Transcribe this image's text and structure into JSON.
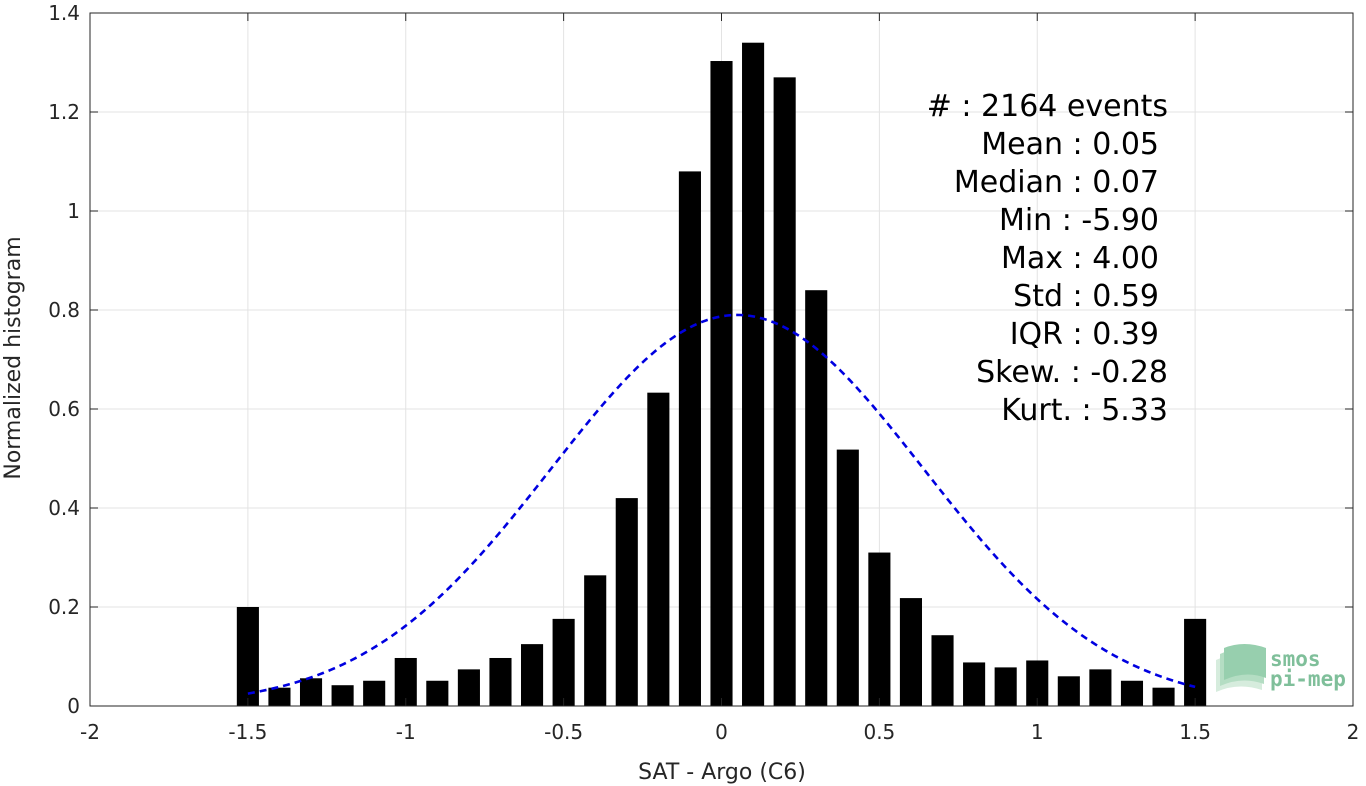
{
  "chart_data": {
    "type": "bar",
    "title": "",
    "xlabel": "SAT - Argo (C6)",
    "ylabel": "Normalized histogram",
    "xlim": [
      -2,
      2
    ],
    "ylim": [
      0,
      1.4
    ],
    "grid": true,
    "xticks": [
      -2,
      -1.5,
      -1,
      -0.5,
      0,
      0.5,
      1,
      1.5,
      2
    ],
    "xtick_labels": [
      "-2",
      "-1.5",
      "-1",
      "-0.5",
      "0",
      "0.5",
      "1",
      "1.5",
      "2"
    ],
    "yticks": [
      0,
      0.2,
      0.4,
      0.6,
      0.8,
      1,
      1.2,
      1.4
    ],
    "ytick_labels": [
      "0",
      "0.2",
      "0.4",
      "0.6",
      "0.8",
      "1",
      "1.2",
      "1.4"
    ],
    "bar_width": 0.07,
    "bars": {
      "x": [
        -1.5,
        -1.4,
        -1.3,
        -1.2,
        -1.1,
        -1.0,
        -0.9,
        -0.8,
        -0.7,
        -0.6,
        -0.5,
        -0.4,
        -0.3,
        -0.2,
        -0.1,
        0.0,
        0.1,
        0.2,
        0.3,
        0.4,
        0.5,
        0.6,
        0.7,
        0.8,
        0.9,
        1.0,
        1.1,
        1.2,
        1.3,
        1.4,
        1.5
      ],
      "values": [
        0.2,
        0.037,
        0.056,
        0.042,
        0.051,
        0.097,
        0.051,
        0.074,
        0.097,
        0.125,
        0.176,
        0.264,
        0.42,
        0.633,
        1.08,
        1.303,
        1.34,
        1.27,
        0.84,
        0.518,
        0.31,
        0.218,
        0.143,
        0.088,
        0.078,
        0.092,
        0.06,
        0.074,
        0.051,
        0.037,
        0.176
      ],
      "color": "#000000"
    },
    "fit": {
      "type": "gaussian",
      "mean": 0.05,
      "std": 0.59,
      "peak": 0.79,
      "x_range": [
        -1.5,
        1.5
      ],
      "color": "#0000e0",
      "style": "dashed"
    }
  },
  "stats": {
    "lines": [
      "#  : 2164 events",
      "Mean : 0.05",
      "Median : 0.07",
      "Min : -5.90",
      "Max : 4.00",
      "Std : 0.59",
      "IQR : 0.39",
      "Skew. : -0.28",
      "Kurt. : 5.33"
    ]
  },
  "logo": {
    "line1": "smos",
    "line2": "pi-mep",
    "color": "#7fbf9a"
  }
}
